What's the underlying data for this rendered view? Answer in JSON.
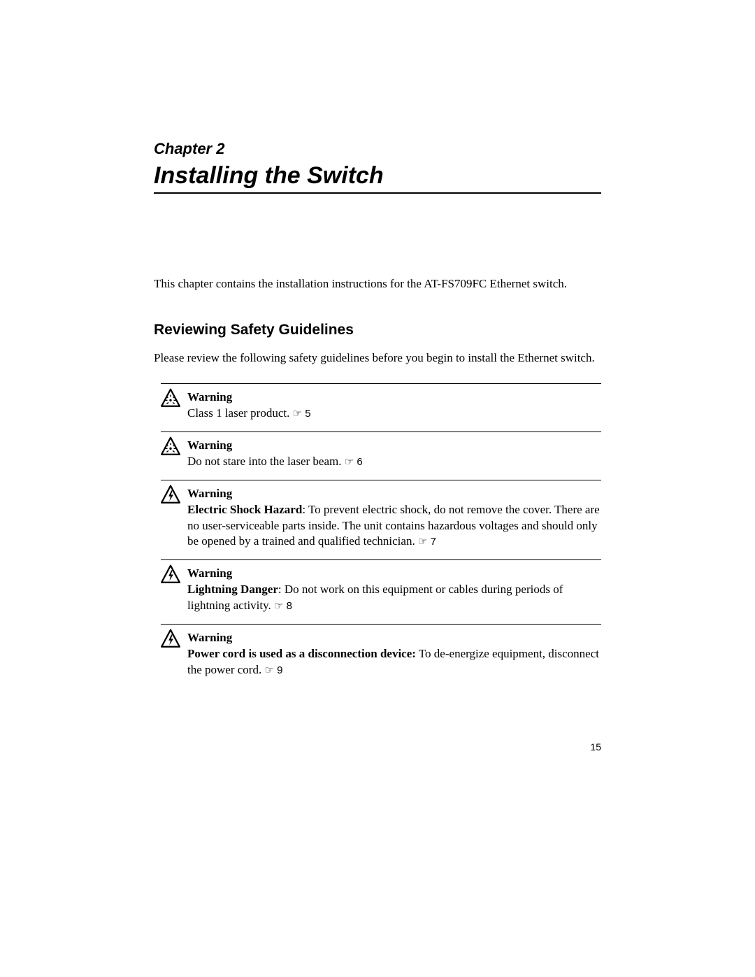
{
  "chapter": {
    "label": "Chapter 2",
    "title": "Installing the Switch"
  },
  "intro": "This chapter contains the installation instructions for the AT-FS709FC Ethernet switch.",
  "section": {
    "heading": "Reviewing Safety Guidelines",
    "intro": "Please review the following safety guidelines before you begin to install the Ethernet switch."
  },
  "warnings": [
    {
      "icon": "laser",
      "label": "Warning",
      "bold": "",
      "body": "Class 1 laser product. ",
      "ref": "5"
    },
    {
      "icon": "laser",
      "label": "Warning",
      "bold": "",
      "body": "Do not stare into the laser beam. ",
      "ref": "6"
    },
    {
      "icon": "shock",
      "label": "Warning",
      "bold": "Electric Shock Hazard",
      "body": ": To prevent electric shock, do not remove the cover. There are no user-serviceable parts inside. The unit contains hazardous voltages and should only be opened by a trained and qualified technician. ",
      "ref": "7"
    },
    {
      "icon": "shock",
      "label": "Warning",
      "bold": "Lightning Danger",
      "body": ": Do not work on this equipment or cables during periods of lightning activity. ",
      "ref": "8"
    },
    {
      "icon": "shock",
      "label": "Warning",
      "bold": "Power cord is used as a disconnection device:",
      "body": " To de-energize equipment, disconnect the power cord. ",
      "ref": "9"
    }
  ],
  "page_number": "15",
  "colors": {
    "text": "#000000",
    "background": "#ffffff",
    "rule": "#000000"
  },
  "icons": {
    "laser": "triangle-with-starburst",
    "shock": "triangle-with-bolt"
  }
}
